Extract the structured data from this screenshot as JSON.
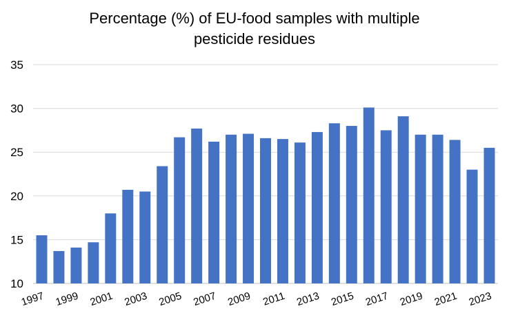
{
  "chart_data": {
    "type": "bar",
    "title_line1": "Percentage (%) of EU-food samples with multiple",
    "title_line2": "pesticide residues",
    "xlabel": "",
    "ylabel": "",
    "ylim": [
      10,
      35
    ],
    "yticks": [
      10,
      15,
      20,
      25,
      30,
      35
    ],
    "grid": true,
    "bar_color": "#4472C4",
    "categories": [
      "1997",
      "1998",
      "1999",
      "2000",
      "2001",
      "2002",
      "2003",
      "2004",
      "2005",
      "2006",
      "2007",
      "2008",
      "2009",
      "2010",
      "2011",
      "2012",
      "2013",
      "2014",
      "2015",
      "2016",
      "2017",
      "2018",
      "2019",
      "2020",
      "2021",
      "2022",
      "2023"
    ],
    "values": [
      15.5,
      13.7,
      14.1,
      14.7,
      18.0,
      20.7,
      20.5,
      23.4,
      26.7,
      27.7,
      26.2,
      27.0,
      27.1,
      26.6,
      26.5,
      26.1,
      27.3,
      28.3,
      28.0,
      30.1,
      27.5,
      29.1,
      27.0,
      27.0,
      26.4,
      23.0,
      25.5
    ],
    "x_tick_labels_shown": [
      "1997",
      "1999",
      "2001",
      "2003",
      "2005",
      "2007",
      "2009",
      "2011",
      "2013",
      "2015",
      "2017",
      "2019",
      "2021",
      "2023"
    ]
  }
}
